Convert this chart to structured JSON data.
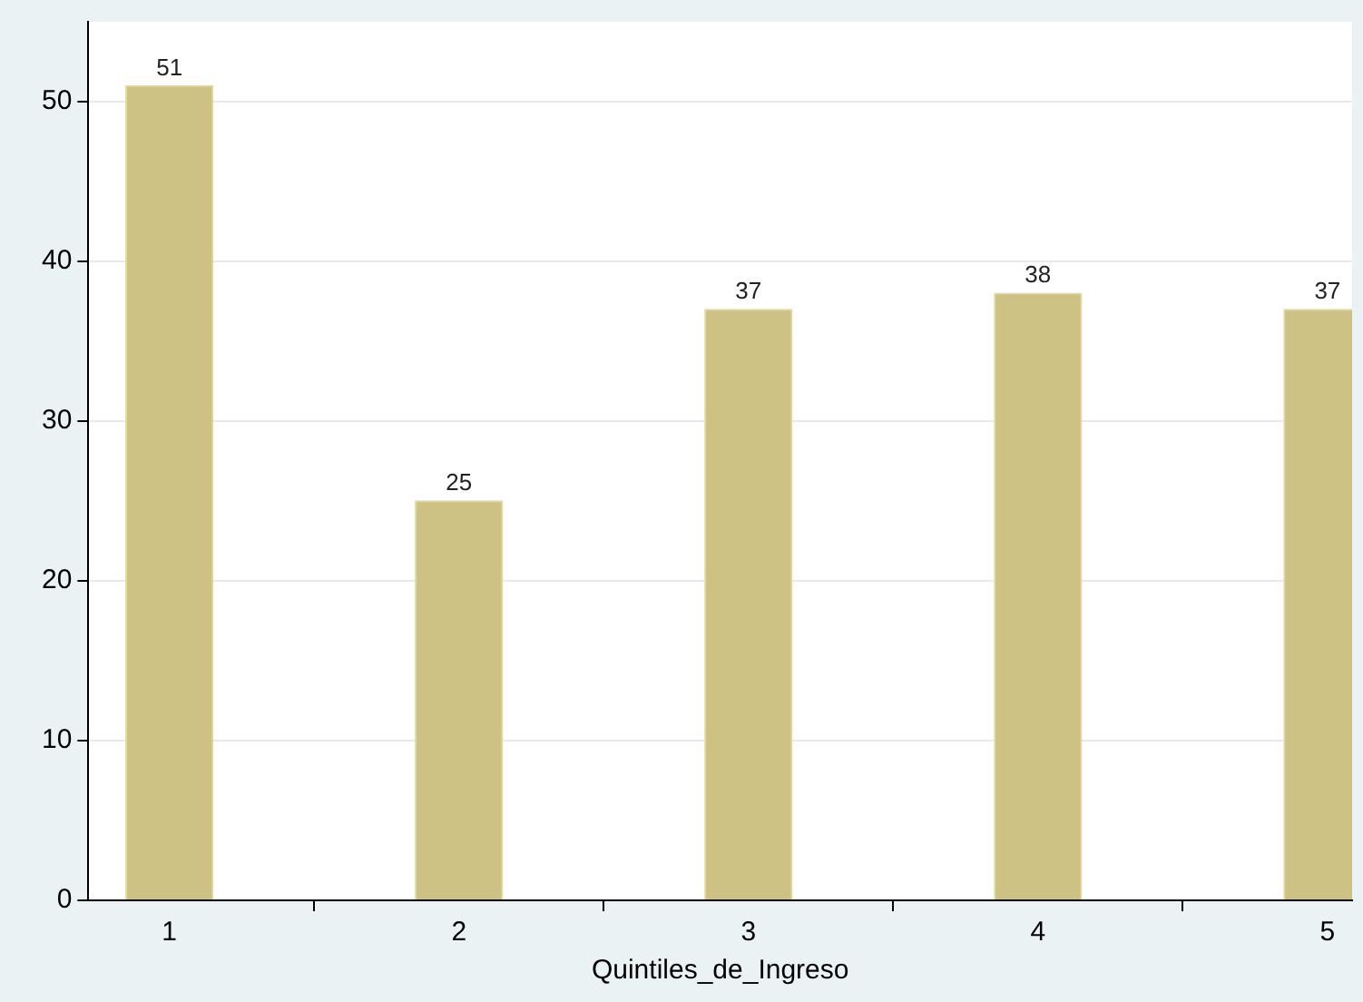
{
  "chart_data": {
    "type": "bar",
    "xlabel": "Quintiles_de_Ingreso",
    "x": [
      1,
      2,
      3,
      4,
      5
    ],
    "values": [
      51,
      25,
      37,
      38,
      37
    ],
    "color": "#cdc283",
    "xlim": [
      0.72,
      5.085
    ],
    "xticks": [
      1,
      2,
      3,
      4,
      5
    ],
    "ylim": [
      0,
      55
    ],
    "yticks": [
      0,
      10,
      20,
      30,
      40,
      50
    ],
    "grid": "y",
    "data_labels": true
  }
}
